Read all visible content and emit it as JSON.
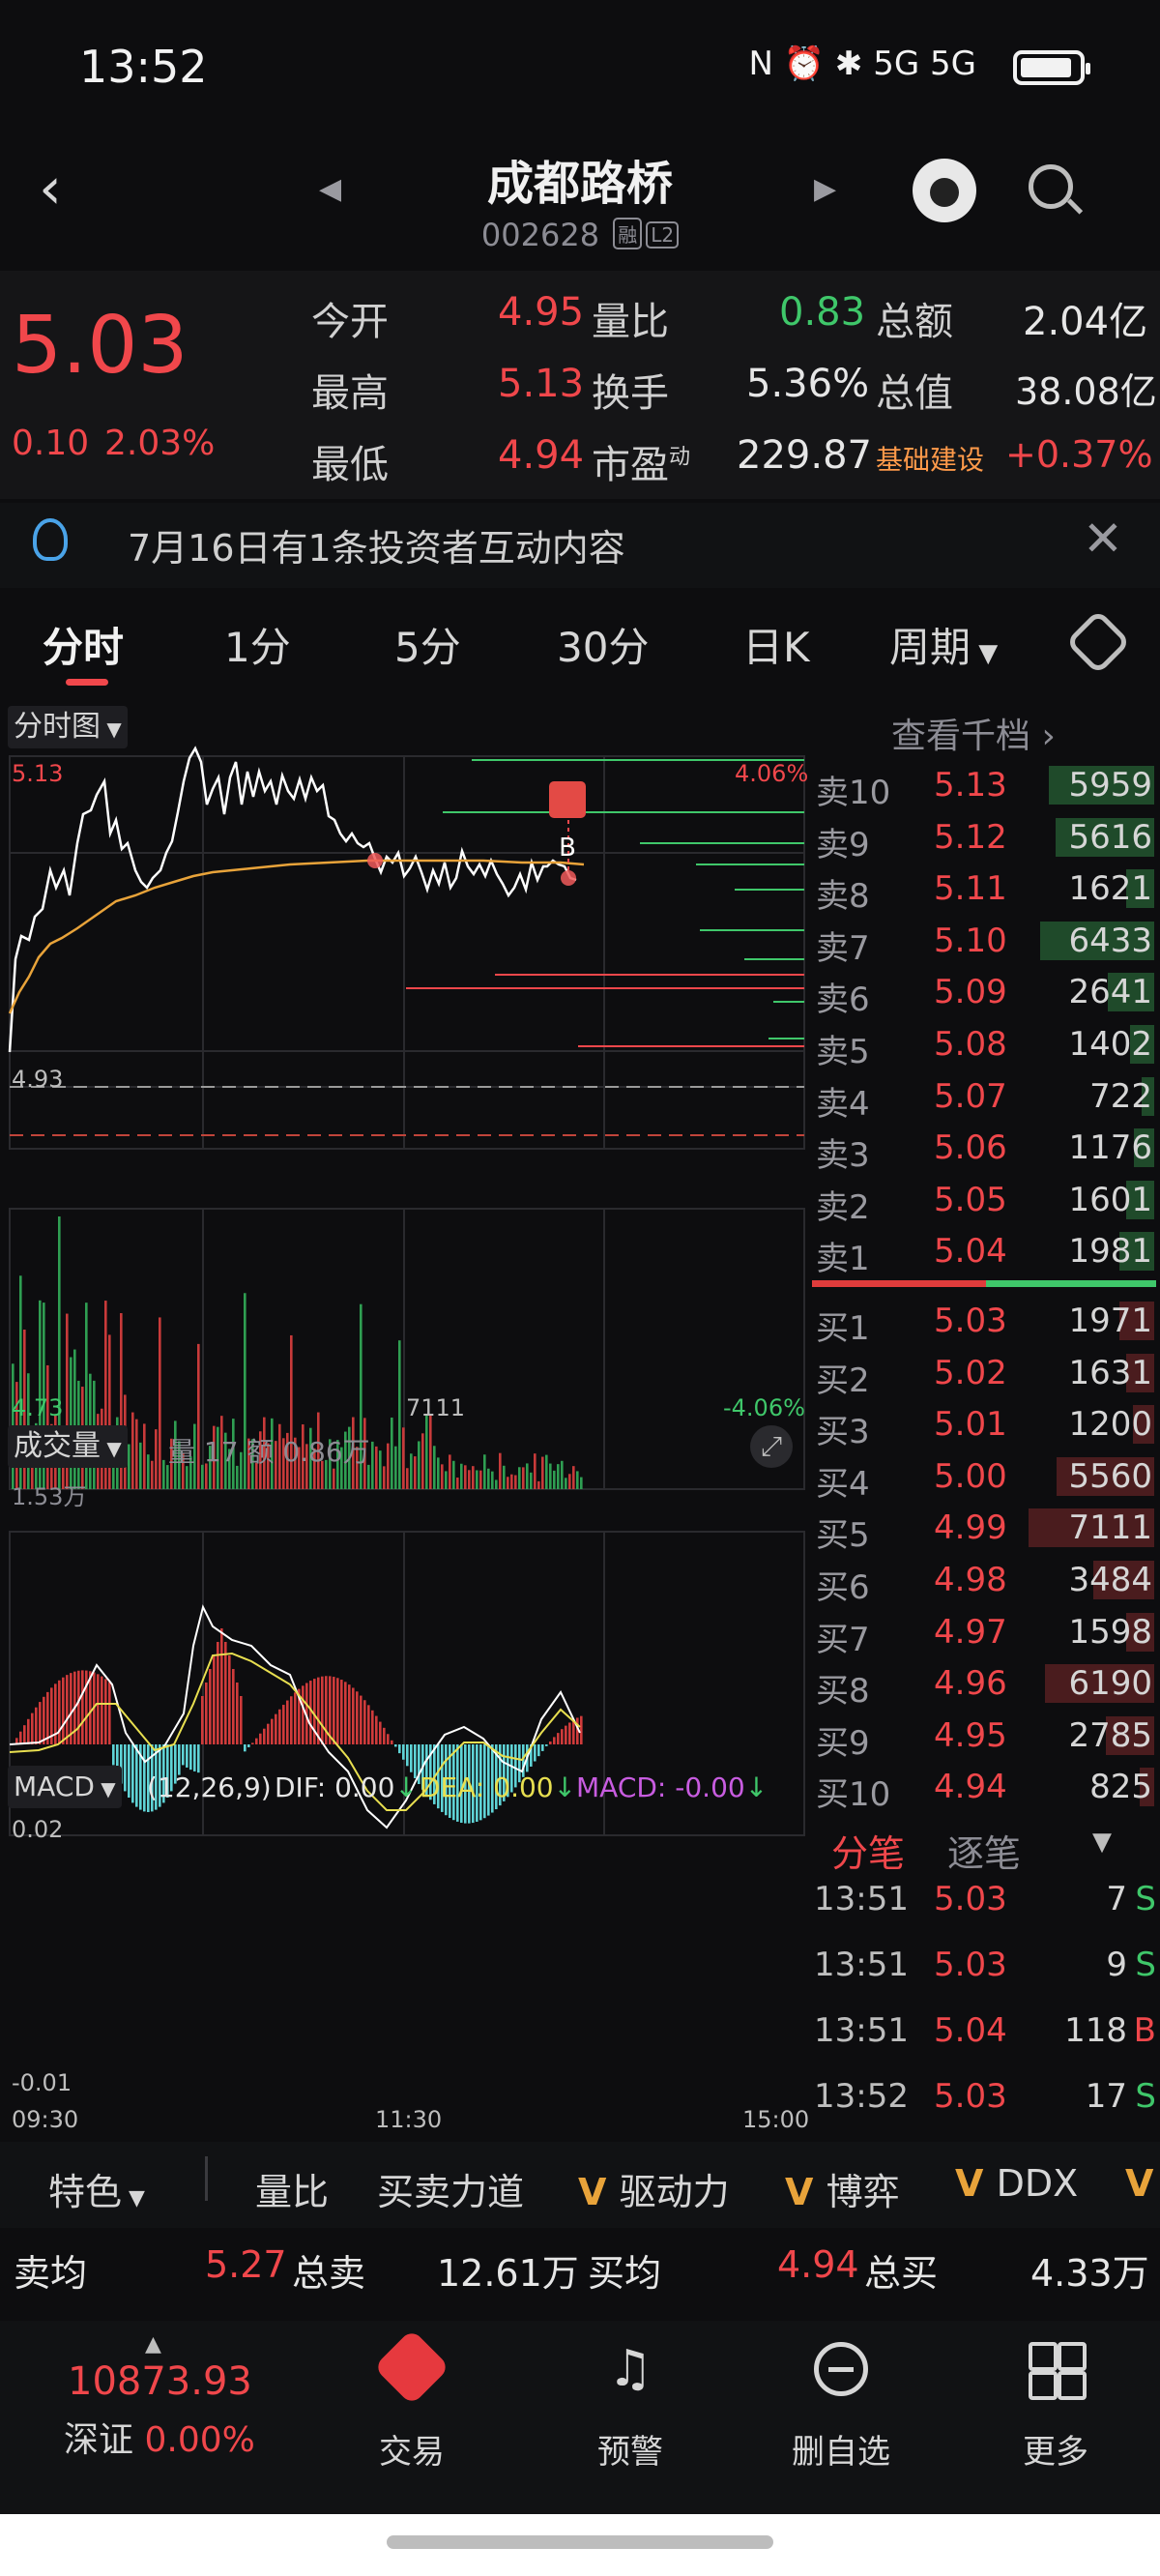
{
  "status": {
    "time": "13:52",
    "icons": "N ⏰ ✱ 5G 5G"
  },
  "header": {
    "title": "成都路桥",
    "code": "002628",
    "tag1": "融",
    "tag2": "L2"
  },
  "quote": {
    "price": "5.03",
    "change": "0.10",
    "change_pct": "2.03%",
    "open_label": "今开",
    "open": "4.95",
    "high_label": "最高",
    "high": "5.13",
    "low_label": "最低",
    "low": "4.94",
    "ratio_label": "量比",
    "ratio": "0.83",
    "turnover_label": "换手",
    "turnover": "5.36%",
    "pe_label": "市盈",
    "pe_sup": "动",
    "pe": "229.87",
    "amount_label": "总额",
    "amount": "2.04亿",
    "cap_label": "总值",
    "cap": "38.08亿",
    "sector_label": "基础建设",
    "sector_pct": "+0.37%"
  },
  "notice": {
    "text": "7月16日有1条投资者互动内容"
  },
  "tabs": {
    "t1": "分时",
    "t2": "1分",
    "t3": "5分",
    "t4": "30分",
    "t5": "日K",
    "t6": "周期"
  },
  "chart": {
    "select_label": "分时图",
    "high": "5.13",
    "mid": "4.93",
    "low": "4.73",
    "pct_high": "4.06%",
    "pct_low": "-4.06%",
    "mid_vol": "7111",
    "marker": "B",
    "vol_label": "成交量",
    "vol_info": "量 17  额 0.86万",
    "vol_max": "1.53万",
    "macd_label": "MACD",
    "macd_params": "(12,26,9)",
    "dif": "DIF: 0.00",
    "dea": "DEA: 0.00",
    "macd": "MACD: -0.00",
    "macd_top": "0.02",
    "macd_bot": "-0.01",
    "t_start": "09:30",
    "t_mid": "11:30",
    "t_end": "15:00",
    "colors": {
      "up": "#f0474b",
      "down": "#3fc76a",
      "avg": "#e8a33a",
      "price": "#ffffff",
      "macd_neg": "#5fd3d6"
    }
  },
  "orderbook": {
    "link": "查看千档",
    "asks": [
      {
        "label": "卖10",
        "price": "5.13",
        "vol": "5959",
        "share": 0.78
      },
      {
        "label": "卖9",
        "price": "5.12",
        "vol": "5616",
        "share": 0.73
      },
      {
        "label": "卖8",
        "price": "5.11",
        "vol": "1621",
        "share": 0.21
      },
      {
        "label": "卖7",
        "price": "5.10",
        "vol": "6433",
        "share": 0.84
      },
      {
        "label": "卖6",
        "price": "5.09",
        "vol": "2641",
        "share": 0.34
      },
      {
        "label": "卖5",
        "price": "5.08",
        "vol": "1402",
        "share": 0.18
      },
      {
        "label": "卖4",
        "price": "5.07",
        "vol": "722",
        "share": 0.09
      },
      {
        "label": "卖3",
        "price": "5.06",
        "vol": "1176",
        "share": 0.15
      },
      {
        "label": "卖2",
        "price": "5.05",
        "vol": "1601",
        "share": 0.21
      },
      {
        "label": "卖1",
        "price": "5.04",
        "vol": "1981",
        "share": 0.26
      }
    ],
    "bids": [
      {
        "label": "买1",
        "price": "5.03",
        "vol": "1971",
        "share": 0.26
      },
      {
        "label": "买2",
        "price": "5.02",
        "vol": "1631",
        "share": 0.21
      },
      {
        "label": "买3",
        "price": "5.01",
        "vol": "1200",
        "share": 0.16
      },
      {
        "label": "买4",
        "price": "5.00",
        "vol": "5560",
        "share": 0.72
      },
      {
        "label": "买5",
        "price": "4.99",
        "vol": "7111",
        "share": 0.93
      },
      {
        "label": "买6",
        "price": "4.98",
        "vol": "3484",
        "share": 0.45
      },
      {
        "label": "买7",
        "price": "4.97",
        "vol": "1598",
        "share": 0.21
      },
      {
        "label": "买8",
        "price": "4.96",
        "vol": "6190",
        "share": 0.81
      },
      {
        "label": "买9",
        "price": "4.95",
        "vol": "2785",
        "share": 0.36
      },
      {
        "label": "买10",
        "price": "4.94",
        "vol": "825",
        "share": 0.11
      }
    ],
    "tab1": "分笔",
    "tab2": "逐笔",
    "trades": [
      {
        "time": "13:51",
        "price": "5.03",
        "vol": "7",
        "side": "S"
      },
      {
        "time": "13:51",
        "price": "5.03",
        "vol": "9",
        "side": "S"
      },
      {
        "time": "13:51",
        "price": "5.04",
        "vol": "118",
        "side": "B"
      },
      {
        "time": "13:52",
        "price": "5.03",
        "vol": "17",
        "side": "S"
      }
    ]
  },
  "features": {
    "f0": "特色",
    "f1": "量比",
    "f2": "买卖力道",
    "f3": "驱动力",
    "f4": "博弈",
    "f5": "DDX"
  },
  "summary": {
    "sell_avg_label": "卖均",
    "sell_avg": "5.27",
    "sell_total_label": "总卖",
    "sell_total": "12.61万",
    "buy_avg_label": "买均",
    "buy_avg": "4.94",
    "buy_total_label": "总买",
    "buy_total": "4.33万"
  },
  "nav": {
    "index_value": "10873.93",
    "index_label": "深证",
    "index_pct": "0.00%",
    "trade": "交易",
    "alert": "预警",
    "remove": "删自选",
    "more": "更多"
  }
}
